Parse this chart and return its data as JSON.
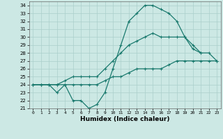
{
  "xlabel": "Humidex (Indice chaleur)",
  "bg_color": "#cce8e4",
  "grid_color": "#aacfcb",
  "line_color": "#1a7a6e",
  "xlim": [
    -0.5,
    23.5
  ],
  "ylim": [
    21,
    34.5
  ],
  "xticks": [
    0,
    1,
    2,
    3,
    4,
    5,
    6,
    7,
    8,
    9,
    10,
    11,
    12,
    13,
    14,
    15,
    16,
    17,
    18,
    19,
    20,
    21,
    22,
    23
  ],
  "yticks": [
    21,
    22,
    23,
    24,
    25,
    26,
    27,
    28,
    29,
    30,
    31,
    32,
    33,
    34
  ],
  "line1": [
    24,
    24,
    24,
    23,
    24,
    22,
    22,
    21,
    21.5,
    23,
    26,
    29,
    32,
    33,
    34,
    34,
    33.5,
    33,
    32,
    30,
    29,
    28,
    null,
    null
  ],
  "line2": [
    24,
    24,
    24,
    24,
    24.5,
    25,
    25,
    25,
    25,
    26,
    27,
    28,
    29,
    29.5,
    30,
    30.5,
    30,
    30,
    30,
    30,
    28.5,
    28,
    28,
    27
  ],
  "line3": [
    24,
    24,
    24,
    24,
    24,
    24,
    24,
    24,
    24,
    24.5,
    25,
    25,
    25.5,
    26,
    26,
    26,
    26,
    26.5,
    27,
    27,
    27,
    27,
    27,
    27
  ]
}
